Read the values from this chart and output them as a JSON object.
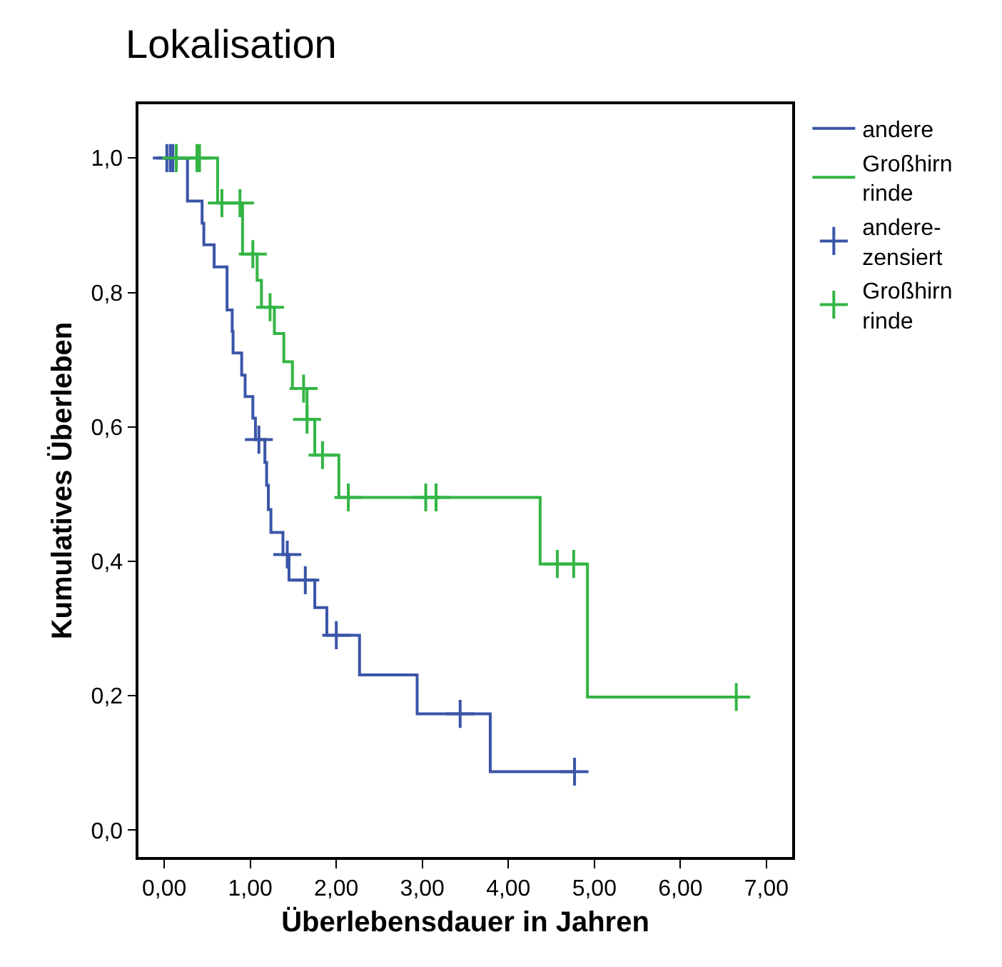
{
  "chart_data": {
    "type": "step",
    "title": "Lokalisation",
    "xlabel": "Überlebensdauer in Jahren",
    "ylabel": "Kumulatives Überleben",
    "xlim": [
      -0.3,
      7.3
    ],
    "ylim": [
      -0.04,
      1.08
    ],
    "xticks": [
      {
        "value": 0,
        "label": "0,00"
      },
      {
        "value": 1,
        "label": "1,00"
      },
      {
        "value": 2,
        "label": "2,00"
      },
      {
        "value": 3,
        "label": "3,00"
      },
      {
        "value": 4,
        "label": "4,00"
      },
      {
        "value": 5,
        "label": "5,00"
      },
      {
        "value": 6,
        "label": "6,00"
      },
      {
        "value": 7,
        "label": "7,00"
      }
    ],
    "yticks": [
      {
        "value": 0,
        "label": "0,0"
      },
      {
        "value": 0.2,
        "label": "0,2"
      },
      {
        "value": 0.4,
        "label": "0,4"
      },
      {
        "value": 0.6,
        "label": "0,6"
      },
      {
        "value": 0.8,
        "label": "0,8"
      },
      {
        "value": 1,
        "label": "1,0"
      }
    ],
    "grid": false,
    "legend": "right",
    "line_style": "solid",
    "series": [
      {
        "name": "andere",
        "color": "#3a55a8",
        "marker": "none",
        "x": [
          0,
          0.27,
          0.44,
          0.46,
          0.58,
          0.73,
          0.79,
          0.8,
          0.9,
          0.94,
          1.03,
          1.06,
          1.17,
          1.19,
          1.21,
          1.24,
          1.38,
          1.45,
          1.75,
          1.89,
          2.27,
          2.94,
          3.79,
          4.77
        ],
        "values": [
          1,
          0.936,
          0.903,
          0.871,
          0.838,
          0.774,
          0.742,
          0.71,
          0.677,
          0.645,
          0.613,
          0.581,
          0.547,
          0.513,
          0.477,
          0.443,
          0.41,
          0.372,
          0.331,
          0.29,
          0.231,
          0.173,
          0.087,
          0.087
        ]
      },
      {
        "name": "Großhirn\nrinde",
        "color": "#33b544",
        "marker": "none",
        "x": [
          0,
          0.62,
          0.91,
          1.08,
          1.13,
          1.28,
          1.39,
          1.49,
          1.66,
          1.75,
          2.03,
          4.37,
          4.92,
          6.65
        ],
        "values": [
          1,
          0.933,
          0.857,
          0.818,
          0.778,
          0.739,
          0.697,
          0.657,
          0.611,
          0.558,
          0.495,
          0.396,
          0.198,
          0.198
        ]
      },
      {
        "name": "andere-\nzensiert",
        "color": "#3a55a8",
        "type": "scatter",
        "marker": "cross",
        "x": [
          0.03,
          0.07,
          0.1,
          1.1,
          1.43,
          1.64,
          2.0,
          3.44,
          4.77
        ],
        "values": [
          1,
          1,
          1,
          0.581,
          0.41,
          0.372,
          0.29,
          0.173,
          0.087
        ]
      },
      {
        "name": "Großhirn\nrinde",
        "color": "#33b544",
        "type": "scatter",
        "marker": "cross",
        "x": [
          0.14,
          0.38,
          0.41,
          0.67,
          0.88,
          1.03,
          1.23,
          1.62,
          1.66,
          1.84,
          2.14,
          3.04,
          3.16,
          4.57,
          4.76,
          6.65
        ],
        "values": [
          1,
          1,
          1,
          0.933,
          0.933,
          0.857,
          0.778,
          0.657,
          0.611,
          0.558,
          0.495,
          0.495,
          0.495,
          0.396,
          0.396,
          0.198
        ]
      }
    ]
  }
}
